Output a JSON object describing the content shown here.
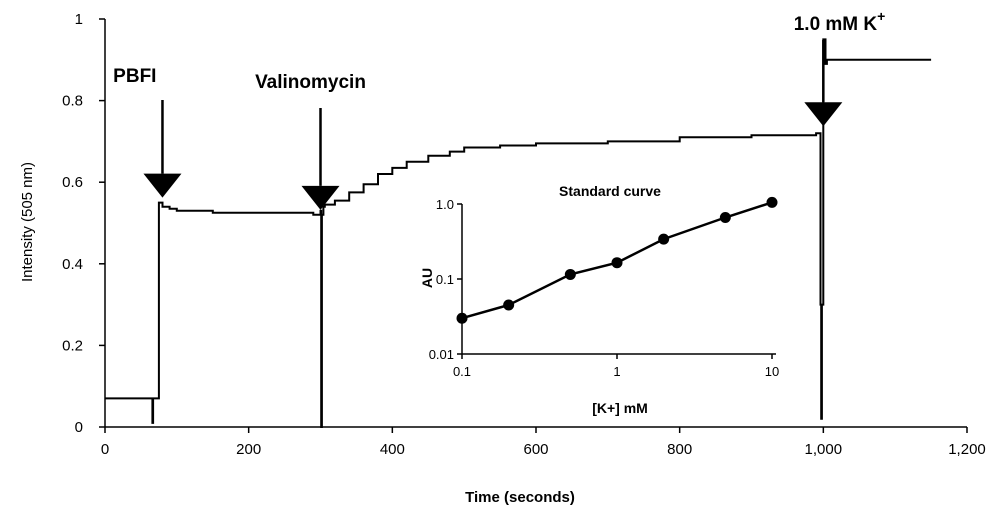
{
  "chart_data": [
    {
      "type": "line",
      "title": "",
      "xlabel": "Time (seconds)",
      "ylabel": "Intensity (505 nm)",
      "xlim": [
        0,
        1200
      ],
      "ylim": [
        0,
        1
      ],
      "x_ticks": [
        0,
        200,
        400,
        600,
        800,
        1000,
        1200
      ],
      "x_tick_labels": [
        "0",
        "200",
        "400",
        "600",
        "800",
        "1,000",
        "1,200"
      ],
      "y_ticks": [
        0,
        0.2,
        0.4,
        0.6,
        0.8,
        1
      ],
      "y_tick_labels": [
        "0",
        "0.2",
        "0.4",
        "0.6",
        "0.8",
        "1"
      ],
      "grid": false,
      "series": [
        {
          "x": [
            0,
            60,
            65,
            66,
            67,
            68,
            70,
            75,
            80,
            90,
            100,
            120,
            150,
            200,
            250,
            290,
            298,
            300,
            301,
            302,
            304,
            306,
            310,
            320,
            340,
            360,
            380,
            400,
            420,
            450,
            480,
            500,
            550,
            600,
            700,
            800,
            900,
            990,
            993,
            994,
            995,
            996,
            997,
            998,
            1000,
            1003,
            1005,
            1008,
            1010,
            1050,
            1100,
            1150
          ],
          "y": [
            0.07,
            0.07,
            0.07,
            0.01,
            0.07,
            0.07,
            0.07,
            0.55,
            0.54,
            0.535,
            0.53,
            0.53,
            0.525,
            0.525,
            0.525,
            0.52,
            0.52,
            0.53,
            0.0,
            0.52,
            0.54,
            0.545,
            0.545,
            0.555,
            0.575,
            0.595,
            0.62,
            0.635,
            0.65,
            0.665,
            0.675,
            0.685,
            0.69,
            0.695,
            0.7,
            0.71,
            0.715,
            0.72,
            0.72,
            0.72,
            0.72,
            0.3,
            0.02,
            0.3,
            0.95,
            0.89,
            0.9,
            0.9,
            0.9,
            0.9,
            0.9,
            0.9
          ]
        }
      ],
      "annotations": [
        {
          "text": "PBFI",
          "x": 80,
          "y": 0.55
        },
        {
          "text": "Valinomycin",
          "x": 300,
          "y": 0.52
        },
        {
          "text": "1.0 mM K",
          "sup": "+",
          "x": 1000,
          "y": 0.72
        }
      ]
    },
    {
      "type": "line",
      "title": "Standard curve",
      "xlabel": "[K+] mM",
      "ylabel": "AU",
      "x_scale": "log",
      "y_scale": "log",
      "xlim": [
        0.1,
        10
      ],
      "ylim": [
        0.01,
        1
      ],
      "x_ticks": [
        0.1,
        1,
        10
      ],
      "x_tick_labels": [
        "0.1",
        "1",
        "10"
      ],
      "y_ticks": [
        0.01,
        0.1,
        1
      ],
      "y_tick_labels": [
        "0.01",
        "0.1",
        "1.0"
      ],
      "grid": false,
      "series": [
        {
          "x": [
            0.1,
            0.2,
            0.5,
            1,
            2,
            5,
            10
          ],
          "y": [
            0.03,
            0.045,
            0.115,
            0.165,
            0.34,
            0.66,
            1.05
          ]
        }
      ]
    }
  ]
}
